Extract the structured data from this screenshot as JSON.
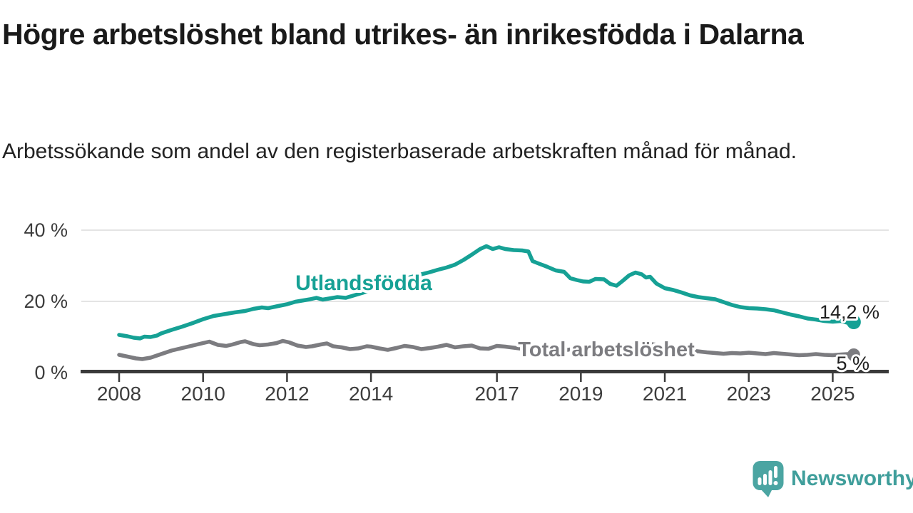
{
  "header": {
    "title": "Högre arbetslöshet bland utrikes- än inrikesfödda i Dalarna",
    "subtitle": "Arbetssökande som andel av den registerbaserade arbetskraften månad för månad."
  },
  "chart_data": {
    "type": "line",
    "title": "Högre arbetslöshet bland utrikes- än inrikesfödda i Dalarna",
    "subtitle": "Arbetssökande som andel av den registerbaserade arbetskraften månad för månad.",
    "unit": "%",
    "x_axis": {
      "range": [
        2007.6,
        2026.3
      ],
      "ticks": [
        {
          "year": 2008,
          "label": "2008"
        },
        {
          "year": 2010,
          "label": "2010"
        },
        {
          "year": 2012,
          "label": "2012"
        },
        {
          "year": 2014,
          "label": "2014"
        },
        {
          "year": 2017,
          "label": "2017"
        },
        {
          "year": 2019,
          "label": "2019"
        },
        {
          "year": 2021,
          "label": "2021"
        },
        {
          "year": 2023,
          "label": "2023"
        },
        {
          "year": 2025,
          "label": "2025"
        }
      ]
    },
    "y_axis": {
      "range": [
        0,
        42
      ],
      "grid": true,
      "ticks": [
        {
          "value": 0,
          "label": "0 %"
        },
        {
          "value": 20,
          "label": "20 %"
        },
        {
          "value": 40,
          "label": "40 %"
        }
      ]
    },
    "series": [
      {
        "name": "Utlandsfödda",
        "color": "#16a195",
        "end_label": "14,2 %",
        "end_value": 14.2,
        "points": [
          [
            2008.0,
            10.6
          ],
          [
            2008.2,
            10.2
          ],
          [
            2008.35,
            9.8
          ],
          [
            2008.5,
            9.6
          ],
          [
            2008.6,
            10.1
          ],
          [
            2008.75,
            10.0
          ],
          [
            2008.9,
            10.4
          ],
          [
            2009.0,
            11.0
          ],
          [
            2009.25,
            12.0
          ],
          [
            2009.5,
            12.9
          ],
          [
            2009.75,
            13.9
          ],
          [
            2010.0,
            15.0
          ],
          [
            2010.25,
            15.9
          ],
          [
            2010.5,
            16.4
          ],
          [
            2010.75,
            16.9
          ],
          [
            2011.0,
            17.3
          ],
          [
            2011.2,
            17.9
          ],
          [
            2011.4,
            18.3
          ],
          [
            2011.55,
            18.1
          ],
          [
            2011.75,
            18.6
          ],
          [
            2012.0,
            19.2
          ],
          [
            2012.2,
            19.9
          ],
          [
            2012.4,
            20.3
          ],
          [
            2012.55,
            20.6
          ],
          [
            2012.7,
            21.0
          ],
          [
            2012.85,
            20.5
          ],
          [
            2013.0,
            20.8
          ],
          [
            2013.2,
            21.2
          ],
          [
            2013.4,
            21.0
          ],
          [
            2013.6,
            21.7
          ],
          [
            2013.8,
            22.4
          ],
          [
            2014.0,
            23.3
          ],
          [
            2014.25,
            24.3
          ],
          [
            2014.5,
            25.3
          ],
          [
            2014.75,
            26.2
          ],
          [
            2015.0,
            27.0
          ],
          [
            2015.2,
            27.6
          ],
          [
            2015.4,
            28.2
          ],
          [
            2015.6,
            28.9
          ],
          [
            2015.8,
            29.5
          ],
          [
            2016.0,
            30.3
          ],
          [
            2016.2,
            31.6
          ],
          [
            2016.4,
            33.1
          ],
          [
            2016.6,
            34.7
          ],
          [
            2016.75,
            35.5
          ],
          [
            2016.9,
            34.7
          ],
          [
            2017.05,
            35.2
          ],
          [
            2017.2,
            34.7
          ],
          [
            2017.4,
            34.4
          ],
          [
            2017.6,
            34.3
          ],
          [
            2017.75,
            34.0
          ],
          [
            2017.85,
            31.3
          ],
          [
            2018.0,
            30.6
          ],
          [
            2018.2,
            29.7
          ],
          [
            2018.4,
            28.7
          ],
          [
            2018.6,
            28.3
          ],
          [
            2018.75,
            26.5
          ],
          [
            2018.9,
            26.0
          ],
          [
            2019.05,
            25.6
          ],
          [
            2019.2,
            25.5
          ],
          [
            2019.35,
            26.3
          ],
          [
            2019.55,
            26.2
          ],
          [
            2019.7,
            24.9
          ],
          [
            2019.85,
            24.4
          ],
          [
            2020.0,
            25.8
          ],
          [
            2020.15,
            27.3
          ],
          [
            2020.3,
            28.1
          ],
          [
            2020.45,
            27.6
          ],
          [
            2020.55,
            26.7
          ],
          [
            2020.65,
            26.9
          ],
          [
            2020.8,
            25.0
          ],
          [
            2021.0,
            23.7
          ],
          [
            2021.2,
            23.2
          ],
          [
            2021.4,
            22.5
          ],
          [
            2021.6,
            21.7
          ],
          [
            2021.8,
            21.2
          ],
          [
            2022.0,
            20.9
          ],
          [
            2022.2,
            20.6
          ],
          [
            2022.4,
            19.8
          ],
          [
            2022.6,
            19.0
          ],
          [
            2022.8,
            18.4
          ],
          [
            2023.0,
            18.1
          ],
          [
            2023.2,
            18.0
          ],
          [
            2023.4,
            17.8
          ],
          [
            2023.6,
            17.5
          ],
          [
            2023.8,
            16.9
          ],
          [
            2024.0,
            16.3
          ],
          [
            2024.2,
            15.8
          ],
          [
            2024.4,
            15.2
          ],
          [
            2024.6,
            14.9
          ],
          [
            2024.8,
            14.5
          ],
          [
            2025.0,
            14.3
          ],
          [
            2025.2,
            14.5
          ],
          [
            2025.35,
            14.0
          ],
          [
            2025.5,
            14.2
          ]
        ]
      },
      {
        "name": "Total arbetslöshet",
        "color": "#7c7c80",
        "end_label": "5 %",
        "end_value": 5.0,
        "points": [
          [
            2008.0,
            5.0
          ],
          [
            2008.2,
            4.5
          ],
          [
            2008.4,
            4.0
          ],
          [
            2008.55,
            3.8
          ],
          [
            2008.75,
            4.2
          ],
          [
            2009.0,
            5.2
          ],
          [
            2009.25,
            6.2
          ],
          [
            2009.5,
            6.9
          ],
          [
            2009.75,
            7.6
          ],
          [
            2010.0,
            8.3
          ],
          [
            2010.15,
            8.7
          ],
          [
            2010.35,
            7.8
          ],
          [
            2010.55,
            7.5
          ],
          [
            2010.7,
            7.9
          ],
          [
            2010.9,
            8.6
          ],
          [
            2011.0,
            8.8
          ],
          [
            2011.2,
            8.0
          ],
          [
            2011.35,
            7.7
          ],
          [
            2011.55,
            7.9
          ],
          [
            2011.75,
            8.3
          ],
          [
            2011.9,
            8.9
          ],
          [
            2012.05,
            8.5
          ],
          [
            2012.25,
            7.6
          ],
          [
            2012.45,
            7.2
          ],
          [
            2012.6,
            7.4
          ],
          [
            2012.8,
            7.9
          ],
          [
            2012.95,
            8.2
          ],
          [
            2013.1,
            7.4
          ],
          [
            2013.3,
            7.1
          ],
          [
            2013.5,
            6.6
          ],
          [
            2013.7,
            6.8
          ],
          [
            2013.9,
            7.4
          ],
          [
            2014.0,
            7.3
          ],
          [
            2014.2,
            6.8
          ],
          [
            2014.4,
            6.4
          ],
          [
            2014.6,
            6.9
          ],
          [
            2014.8,
            7.5
          ],
          [
            2015.0,
            7.2
          ],
          [
            2015.2,
            6.6
          ],
          [
            2015.4,
            6.9
          ],
          [
            2015.6,
            7.3
          ],
          [
            2015.8,
            7.8
          ],
          [
            2016.0,
            7.1
          ],
          [
            2016.2,
            7.4
          ],
          [
            2016.4,
            7.6
          ],
          [
            2016.6,
            6.8
          ],
          [
            2016.8,
            6.7
          ],
          [
            2017.0,
            7.5
          ],
          [
            2017.2,
            7.3
          ],
          [
            2017.4,
            7.0
          ],
          [
            2017.6,
            6.7
          ],
          [
            2017.8,
            7.0
          ],
          [
            2018.0,
            7.3
          ],
          [
            2018.3,
            6.6
          ],
          [
            2018.6,
            6.3
          ],
          [
            2018.9,
            6.7
          ],
          [
            2019.1,
            6.5
          ],
          [
            2019.4,
            6.1
          ],
          [
            2019.7,
            5.9
          ],
          [
            2019.95,
            6.1
          ],
          [
            2020.2,
            7.6
          ],
          [
            2020.4,
            8.3
          ],
          [
            2020.6,
            8.1
          ],
          [
            2020.9,
            7.7
          ],
          [
            2021.1,
            7.2
          ],
          [
            2021.4,
            6.6
          ],
          [
            2021.7,
            6.1
          ],
          [
            2022.0,
            5.7
          ],
          [
            2022.2,
            5.5
          ],
          [
            2022.4,
            5.3
          ],
          [
            2022.6,
            5.5
          ],
          [
            2022.8,
            5.4
          ],
          [
            2023.0,
            5.6
          ],
          [
            2023.2,
            5.4
          ],
          [
            2023.4,
            5.2
          ],
          [
            2023.6,
            5.5
          ],
          [
            2023.8,
            5.3
          ],
          [
            2024.0,
            5.1
          ],
          [
            2024.2,
            4.9
          ],
          [
            2024.4,
            5.0
          ],
          [
            2024.6,
            5.2
          ],
          [
            2024.8,
            5.0
          ],
          [
            2025.0,
            4.9
          ],
          [
            2025.2,
            5.1
          ],
          [
            2025.35,
            5.2
          ],
          [
            2025.5,
            5.0
          ]
        ]
      }
    ],
    "legend_position": "inline-labels",
    "colors": {
      "grid": "#dcdcdc",
      "axis": "#3a3a3a",
      "tick_text": "#3d3d3d",
      "value_label_text": "#202020"
    }
  },
  "branding": {
    "logo_text": "Newsworthy",
    "logo_color": "#4ba5a2",
    "text_color": "#3f9e9b"
  }
}
